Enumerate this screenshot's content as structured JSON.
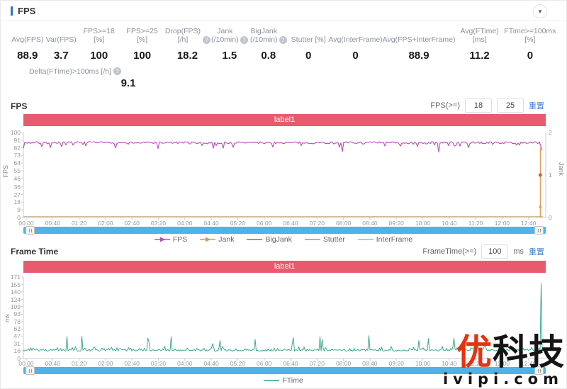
{
  "header": {
    "title": "FPS"
  },
  "stats": {
    "row1": [
      {
        "key": "avg-fps",
        "label": "Avg(FPS)",
        "value": "88.9",
        "info": false
      },
      {
        "key": "var-fps",
        "label": "Var(FPS)",
        "value": "3.7",
        "info": false
      },
      {
        "key": "fps-ge-18",
        "label": "FPS>=18 [%]",
        "value": "100",
        "info": false
      },
      {
        "key": "fps-ge-25",
        "label": "FPS>=25 [%]",
        "value": "100",
        "info": false
      },
      {
        "key": "drop-fps",
        "label": "Drop(FPS) [/h]",
        "value": "18.2",
        "info": true
      },
      {
        "key": "jank",
        "label": "Jank\n(/10min)",
        "value": "1.5",
        "info": true
      },
      {
        "key": "bigjank",
        "label": "BigJank\n(/10min)",
        "value": "0.8",
        "info": true
      },
      {
        "key": "stutter",
        "label": "Stutter [%]",
        "value": "0",
        "info": false
      },
      {
        "key": "avg-interframe",
        "label": "Avg(InterFrame)",
        "value": "0",
        "info": false
      },
      {
        "key": "avg-fps-interframe",
        "label": "Avg(FPS+InterFrame)",
        "value": "88.9",
        "info": false
      },
      {
        "key": "avg-ftime",
        "label": "Avg(FTime) [ms]",
        "value": "11.2",
        "info": false
      },
      {
        "key": "ftime-ge-100ms",
        "label": "FTime>=100ms [%]",
        "value": "0",
        "info": false
      }
    ],
    "row2": [
      {
        "key": "delta-ftime",
        "label": "Delta(FTime)>100ms [/h]",
        "value": "9.1",
        "info": true
      }
    ]
  },
  "fps_section": {
    "title": "FPS",
    "filter_label": "FPS(>=)",
    "filter_values": [
      "18",
      "25"
    ],
    "reset_label": "重置",
    "banner": "label1"
  },
  "ft_section": {
    "title": "Frame Time",
    "filter_label": "FrameTime(>=)",
    "filter_value": "100",
    "unit": "ms",
    "reset_label": "重置",
    "banner": "label1"
  },
  "chart_data": [
    {
      "type": "line",
      "title": "FPS",
      "banner": "label1",
      "x_ticks": [
        "00:00",
        "00:40",
        "01:20",
        "02:00",
        "02:40",
        "03:20",
        "04:00",
        "04:40",
        "05:20",
        "06:00",
        "06:40",
        "07:20",
        "08:00",
        "08:40",
        "09:20",
        "10:00",
        "10:40",
        "11:20",
        "12:00",
        "12:40"
      ],
      "y_left": {
        "label": "FPS",
        "ticks": [
          100,
          91,
          82,
          73,
          64,
          55,
          46,
          36,
          27,
          18,
          9,
          0
        ],
        "range": [
          0,
          100
        ]
      },
      "y_right": {
        "label": "Jank",
        "ticks": [
          2,
          1,
          0
        ],
        "range": [
          0,
          2
        ]
      },
      "legend": [
        {
          "name": "FPS",
          "color": "#b94abb",
          "marker": "arrow"
        },
        {
          "name": "Jank",
          "color": "#e2954c",
          "marker": "arrow"
        },
        {
          "name": "BigJank",
          "color": "#dd4a48",
          "marker": "line"
        },
        {
          "name": "Stutter",
          "color": "#6fa8a8",
          "marker": "line"
        },
        {
          "name": "InterFrame",
          "color": "#74c6e8",
          "marker": "line"
        }
      ],
      "series": [
        {
          "name": "FPS",
          "color": "#b94abb",
          "baseline": 88,
          "noise": 2.4,
          "small_dip_depth": 4,
          "deep_dips": [
            [
              0.26,
              81
            ],
            [
              0.615,
              77.5
            ],
            [
              0.8,
              77
            ]
          ],
          "end_value": 79
        },
        {
          "name": "Jank",
          "color": "#e2954c",
          "baseline": 0,
          "end_spike": {
            "x_frac": 0.995,
            "value": 1.65,
            "dot_value": 1,
            "dot_color": "#dd4a48"
          }
        },
        {
          "name": "Stutter",
          "color": "#6fa8a8",
          "baseline": 0
        },
        {
          "name": "InterFrame",
          "color": "#74c6e8",
          "baseline": 0
        }
      ]
    },
    {
      "type": "line",
      "title": "Frame Time",
      "banner": "label1",
      "x_ticks": [
        "00:00",
        "00:40",
        "01:20",
        "02:00",
        "02:40",
        "03:20",
        "04:00",
        "04:40",
        "05:20",
        "06:00",
        "06:40",
        "07:20",
        "08:00",
        "08:40",
        "09:20",
        "10:00",
        "10:40",
        "11:20",
        "12:00",
        "12:40"
      ],
      "y_left": {
        "label": "ms",
        "ticks": [
          171,
          155,
          140,
          124,
          109,
          93,
          78,
          62,
          47,
          31,
          16,
          0
        ],
        "range": [
          0,
          171
        ]
      },
      "legend": [
        {
          "name": "FTime",
          "color": "#2ea183",
          "marker": "line"
        }
      ],
      "series": [
        {
          "name": "FTime",
          "color": "#2ea183",
          "baseline": 16,
          "noise": 3.5,
          "spikes": [
            [
              0.085,
              46
            ],
            [
              0.24,
              43
            ],
            [
              0.285,
              46
            ],
            [
              0.38,
              38
            ],
            [
              0.52,
              44
            ],
            [
              0.575,
              40
            ],
            [
              0.665,
              48
            ],
            [
              0.78,
              42
            ],
            [
              0.875,
              40
            ]
          ],
          "end_spike_value": 157
        }
      ]
    }
  ],
  "watermark": {
    "brand_red": "优",
    "brand_black": "科技",
    "domain": "ivipi.com"
  }
}
